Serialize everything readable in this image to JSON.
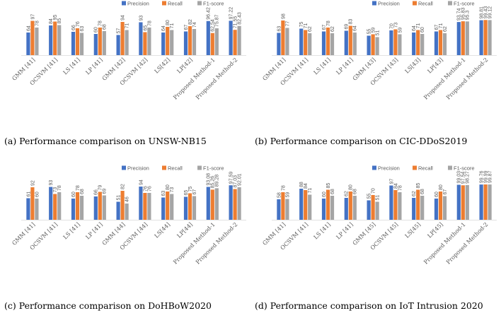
{
  "colors": {
    "precision": "#4472C4",
    "recall": "#ED7D31",
    "f1": "#A5A5A5",
    "text": "#595959"
  },
  "chart_data": [
    {
      "type": "bar",
      "id": "a",
      "caption": "(a) Performance comparison  on UNSW-NB15",
      "legend": [
        "Precision",
        "Recall",
        "F1-score"
      ],
      "ylim": [
        0,
        120
      ],
      "categories": [
        "GMM [41]",
        "OCSVM [41]",
        "LS [41]",
        "LP [41]",
        "GMM [42]",
        "OCSVM [42]",
        "LS[42]",
        "LP[42]",
        "Proposed Method-1",
        "Proposed Method-2"
      ],
      "series": [
        {
          "name": "Precision",
          "values": [
            "64",
            "84",
            "66",
            "60",
            "57",
            "93",
            "64",
            "67",
            "96.42",
            "97.22"
          ]
        },
        {
          "name": "Recall",
          "values": [
            "97",
            "95",
            "76",
            "78",
            "94",
            "65",
            "80",
            "82",
            "62.54",
            "71.55"
          ]
        },
        {
          "name": "F1-score",
          "values": [
            "78",
            "85",
            "63",
            "68",
            "71",
            "78",
            "71",
            "74",
            "75.87",
            "82.43"
          ]
        }
      ]
    },
    {
      "type": "bar",
      "id": "b",
      "caption": "(b) Performance comparison on CIC-DDoS2019",
      "legend": [
        "Precision",
        "Recall",
        "F1-score"
      ],
      "ylim": [
        0,
        120
      ],
      "categories": [
        "GMM [41]",
        "OCSVM [41]",
        "LS [41]",
        "LP [41]",
        "GMM [43]",
        "OCSVM [43]",
        "LS[43]",
        "LP[43]",
        "Proposed Method-1",
        "Proposed Method-2"
      ],
      "series": [
        {
          "name": "Precision",
          "values": [
            "63",
            "75",
            "67",
            "69",
            "55",
            "70",
            "64",
            "67",
            "93.74",
            "98.81"
          ]
        },
        {
          "name": "Recall",
          "values": [
            "98",
            "71",
            "78",
            "83",
            "59",
            "73",
            "71",
            "71",
            "95.83",
            "99.43"
          ]
        },
        {
          "name": "F1-score",
          "values": [
            "77",
            "62",
            "62",
            "64",
            "51",
            "59",
            "60",
            "62",
            "95.3",
            "99.12"
          ]
        }
      ]
    },
    {
      "type": "bar",
      "id": "c",
      "caption": "(c) Performance comparison on DoHBoW2020",
      "legend": [
        "Precision",
        "Recall",
        "F1-score"
      ],
      "ylim": [
        0,
        120
      ],
      "categories": [
        "GMM [41]",
        "OCSVM [41]",
        "LS [41]",
        "LP [41]",
        "GMM [44]",
        "OCSVM [44]",
        "LS[44]",
        "LP[44]",
        "Proposed Method-1",
        "Proposed Method-2"
      ],
      "series": [
        {
          "name": "Precision",
          "values": [
            "61",
            "93",
            "60",
            "66",
            "51",
            "94",
            "63",
            "65",
            "93.08",
            "97.59"
          ]
        },
        {
          "name": "Recall",
          "values": [
            "92",
            "73",
            "78",
            "79",
            "82",
            "76",
            "80",
            "75",
            "85.26",
            "87.03"
          ]
        },
        {
          "name": "F1-score",
          "values": [
            "60",
            "78",
            "68",
            "69",
            "46",
            "76",
            "73",
            "67",
            "89.28",
            "92.01"
          ]
        }
      ]
    },
    {
      "type": "bar",
      "id": "d",
      "caption": "(d) Performance comparison on IoT Intrusion 2020",
      "legend": [
        "Precision",
        "Recall",
        "F1-score"
      ],
      "ylim": [
        0,
        120
      ],
      "categories": [
        "GMM [41]",
        "OCSVM [41]",
        "LS [41]",
        "LP [41]",
        "GMM [45]",
        "OCSVM [45]",
        "LS[45]",
        "LP[45]",
        "Proposed Method-1",
        "Proposed Method-2"
      ],
      "series": [
        {
          "name": "Precision",
          "values": [
            "58",
            "88",
            "60",
            "62",
            "55",
            "97",
            "62",
            "60",
            "99.03",
            "99.76"
          ]
        },
        {
          "name": "Recall",
          "values": [
            "78",
            "84",
            "85",
            "80",
            "70",
            "84",
            "85",
            "80",
            "97.54",
            "99.99"
          ]
        },
        {
          "name": "F1-score",
          "values": [
            "59",
            "71",
            "68",
            "68",
            "51",
            "78",
            "68",
            "67",
            "98.27",
            "99.87"
          ]
        }
      ]
    }
  ]
}
